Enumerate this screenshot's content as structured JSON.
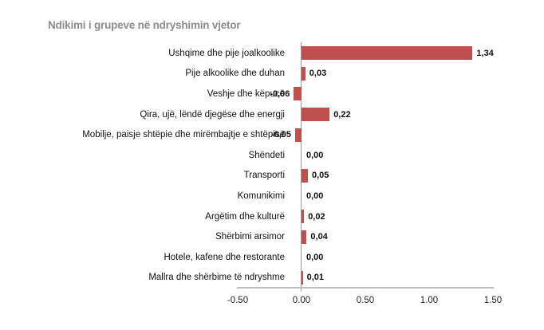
{
  "chart_data": {
    "type": "bar",
    "orientation": "horizontal",
    "title": "Ndikimi i grupeve në ndryshimin vjetor",
    "categories": [
      "Ushqime dhe pije joalkoolike",
      "Pije alkoolike dhe duhan",
      "Veshje dhe këpucë",
      "Qira, ujë, lëndë djegëse dhe energji",
      "Mobilje, paisje shtëpie dhe mirëmbajtje e shtëpisë",
      "Shëndeti",
      "Transporti",
      "Komunikimi",
      "Argëtim dhe kulturë",
      "Shërbimi arsimor",
      "Hotele, kafene dhe restorante",
      "Mallra dhe shërbime të ndryshme"
    ],
    "values": [
      1.34,
      0.03,
      -0.06,
      0.22,
      -0.05,
      0.0,
      0.05,
      0.0,
      0.02,
      0.04,
      0.0,
      0.01
    ],
    "value_labels": [
      "1,34",
      "0,03",
      "-0,06",
      "0,22",
      "-0,05",
      "0,00",
      "0,05",
      "0,00",
      "0,02",
      "0,04",
      "0,00",
      "0,01"
    ],
    "x_ticks": [
      "-0.50",
      "0.00",
      "0.50",
      "1.00",
      "1.50"
    ],
    "x_tick_values": [
      -0.5,
      0.0,
      0.5,
      1.0,
      1.5
    ],
    "xlim": [
      -0.5,
      1.5
    ],
    "xlabel": "",
    "ylabel": "",
    "grid": false,
    "legend": false,
    "bar_color": "#C0504D",
    "axis_line_color": "#BFBFBF",
    "zero_line_color": "#9A9A9A",
    "title_color": "#8C8C8C"
  }
}
